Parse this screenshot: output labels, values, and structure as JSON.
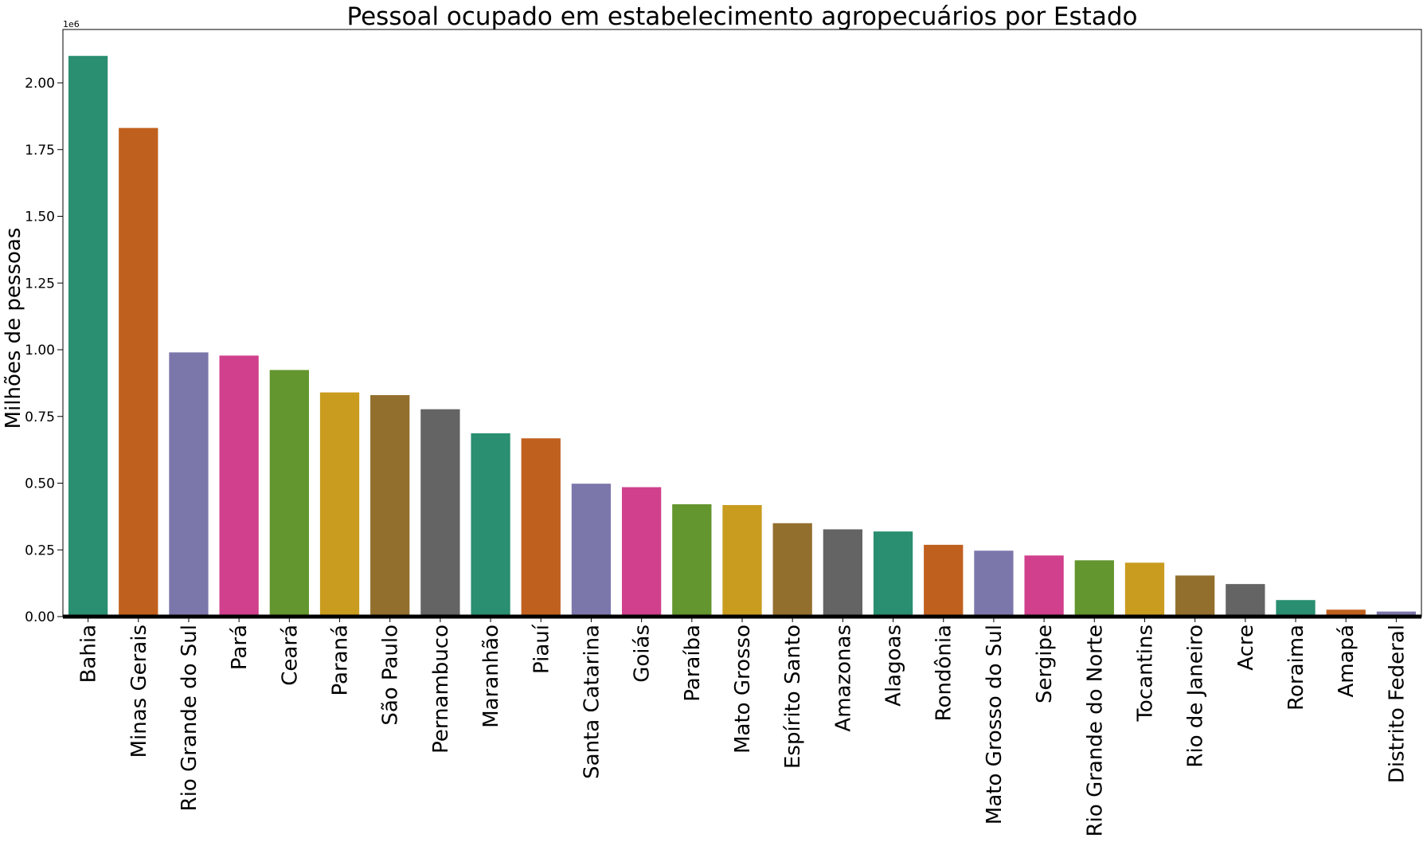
{
  "chart_data": {
    "type": "bar",
    "title": "Pessoal ocupado em estabelecimento agropecuários por Estado",
    "xlabel": "",
    "ylabel": "Milhões de pessoas",
    "scale_offset": "1e6",
    "ylim": [
      0,
      2200000
    ],
    "yticks": [
      0,
      250000,
      500000,
      750000,
      1000000,
      1250000,
      1500000,
      1750000,
      2000000
    ],
    "ytick_labels": [
      "0.00",
      "0.25",
      "0.50",
      "0.75",
      "1.00",
      "1.25",
      "1.50",
      "1.75",
      "2.00"
    ],
    "grid": false,
    "legend": "none",
    "categories": [
      "Bahia",
      "Minas Gerais",
      "Rio Grande do Sul",
      "Pará",
      "Ceará",
      "Paraná",
      "São Paulo",
      "Pernambuco",
      "Maranhão",
      "Piauí",
      "Santa Catarina",
      "Goiás",
      "Paraíba",
      "Mato Grosso",
      "Espírito Santo",
      "Amazonas",
      "Alagoas",
      "Rondônia",
      "Mato Grosso do Sul",
      "Sergipe",
      "Rio Grande do Norte",
      "Tocantins",
      "Rio de Janeiro",
      "Acre",
      "Roraima",
      "Amapá",
      "Distrito Federal"
    ],
    "values": [
      2101000,
      1831000,
      990000,
      978000,
      924000,
      840000,
      830000,
      777000,
      687000,
      668000,
      498000,
      485000,
      421000,
      418000,
      350000,
      327000,
      319000,
      269000,
      247000,
      229000,
      211000,
      202000,
      154000,
      122000,
      62000,
      26000,
      19000
    ],
    "colors": [
      "#2a8e71",
      "#c0601e",
      "#7c77ab",
      "#d0408c",
      "#63962e",
      "#c99c1f",
      "#936f2e",
      "#646464",
      "#2a8e71",
      "#c0601e",
      "#7c77ab",
      "#d0408c",
      "#63962e",
      "#c99c1f",
      "#936f2e",
      "#646464",
      "#2a8e71",
      "#c0601e",
      "#7c77ab",
      "#d0408c",
      "#63962e",
      "#c99c1f",
      "#936f2e",
      "#646464",
      "#2a8e71",
      "#c0601e",
      "#7c77ab"
    ]
  }
}
